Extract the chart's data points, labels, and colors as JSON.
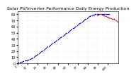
{
  "title": "Solar PV/Inverter Performance Daily Energy Production",
  "title_fontsize": 4.5,
  "bg_color": "#ffffff",
  "grid_color": "#cccccc",
  "xlabel": "",
  "ylabel": "",
  "ylim": [
    0,
    85
  ],
  "yticks": [
    0,
    10,
    20,
    30,
    40,
    50,
    60,
    70,
    80
  ],
  "blue_x": [
    0,
    1,
    2,
    3,
    4,
    5,
    6,
    7,
    8,
    9,
    10,
    11,
    12,
    13,
    14,
    15,
    16,
    17,
    18,
    19,
    20,
    21,
    22,
    23,
    24,
    25,
    26,
    27,
    28,
    29,
    30,
    31,
    32,
    33,
    34,
    35,
    36,
    37,
    38,
    39,
    40,
    41,
    42,
    43,
    44,
    45,
    46,
    47,
    48,
    49,
    50,
    51,
    52,
    53,
    54,
    55,
    56,
    57,
    58,
    59,
    60,
    61,
    62,
    63,
    64,
    65,
    66,
    67,
    68,
    69,
    70,
    71,
    72,
    73,
    74,
    75,
    76,
    77,
    78,
    79,
    80,
    81,
    82,
    83,
    84,
    85,
    86,
    87,
    88,
    89,
    90,
    91,
    92,
    93,
    94,
    95,
    96,
    97,
    98,
    99,
    100,
    101,
    102,
    103,
    104,
    105,
    106,
    107,
    108,
    109,
    110
  ],
  "blue_y": [
    1,
    1,
    1,
    2,
    2,
    2,
    3,
    3,
    4,
    4,
    5,
    5,
    6,
    6,
    7,
    7,
    8,
    8,
    9,
    10,
    11,
    12,
    13,
    14,
    15,
    16,
    17,
    18,
    19,
    20,
    21,
    22,
    23,
    24,
    25,
    26,
    27,
    28,
    29,
    30,
    31,
    32,
    33,
    34,
    35,
    36,
    37,
    38,
    39,
    40,
    41,
    42,
    43,
    44,
    45,
    46,
    47,
    48,
    49,
    50,
    51,
    52,
    53,
    54,
    55,
    56,
    57,
    58,
    59,
    60,
    61,
    62,
    63,
    64,
    65,
    66,
    67,
    68,
    69,
    70,
    71,
    72,
    73,
    74,
    75,
    76,
    77,
    77,
    78,
    78,
    79,
    79,
    79,
    80,
    80,
    80,
    80,
    80,
    80,
    80,
    80,
    80,
    80,
    80,
    80,
    80,
    80,
    80,
    80,
    80,
    80
  ],
  "red_x": [
    95,
    96,
    97,
    98,
    99,
    100,
    101,
    102,
    103,
    104,
    105,
    106,
    107,
    108,
    109,
    110,
    111,
    112,
    113,
    114,
    115,
    116,
    117,
    118,
    119,
    120
  ],
  "red_y": [
    78,
    79,
    79,
    80,
    80,
    80,
    79,
    79,
    78,
    78,
    77,
    77,
    76,
    76,
    75,
    75,
    74,
    74,
    73,
    73,
    72,
    72,
    71,
    70,
    69,
    68
  ],
  "marker_size": 1.0,
  "n_xticks": 10,
  "xtick_fontsize": 3.0,
  "ytick_fontsize": 3.5
}
